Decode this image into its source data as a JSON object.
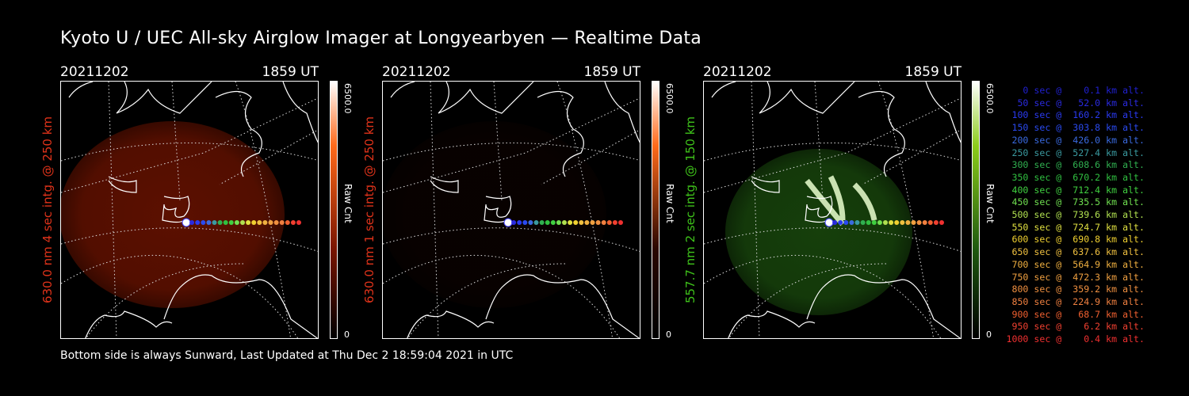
{
  "title": "Kyoto U / UEC All-sky Airglow Imager at Longyearbyen — Realtime Data",
  "panels": [
    {
      "date": "20211202",
      "time": "1859 UT",
      "ylabel": "630.0 nm 4 sec intg. @ 250 km",
      "ylabel_color": "#e0331a",
      "cbar_max": "6500.0",
      "cbar_min": "0",
      "cbar_unit": "Raw Cnt",
      "cbar_top_color": "#ff6a1a",
      "glow_color": "#7a1500",
      "glow_level": 0.75
    },
    {
      "date": "20211202",
      "time": "1859 UT",
      "ylabel": "630.0 nm 1 sec intg. @ 250 km",
      "ylabel_color": "#e0331a",
      "cbar_max": "6500.0",
      "cbar_min": "0",
      "cbar_unit": "Raw Cnt",
      "cbar_top_color": "#ff6a1a",
      "glow_color": "#2a0700",
      "glow_level": 0.2
    },
    {
      "date": "20211202",
      "time": "1859 UT",
      "ylabel": "557.7 nm 2 sec intg. @ 150 km",
      "ylabel_color": "#3ec21a",
      "cbar_max": "6500.0",
      "cbar_min": "0",
      "cbar_unit": "Raw Cnt",
      "cbar_top_color": "#8ccc1a",
      "glow_color": "#1f5a10",
      "glow_level": 0.7
    }
  ],
  "footer": "Bottom side is always Sunward, Last Updated at Thu Dec  2 18:59:04 2021 in UTC",
  "legend": [
    {
      "text": "   0 sec @    0.1 km alt.",
      "color": "#2020d0"
    },
    {
      "text": "  50 sec @   52.0 km alt.",
      "color": "#2a2ae0"
    },
    {
      "text": " 100 sec @  160.2 km alt.",
      "color": "#2a3af0"
    },
    {
      "text": " 150 sec @  303.8 km alt.",
      "color": "#2a4af0"
    },
    {
      "text": " 200 sec @  426.0 km alt.",
      "color": "#3a6ae0"
    },
    {
      "text": " 250 sec @  527.4 km alt.",
      "color": "#3a9aa0"
    },
    {
      "text": " 300 sec @  608.6 km alt.",
      "color": "#30b050"
    },
    {
      "text": " 350 sec @  670.2 km alt.",
      "color": "#30c040"
    },
    {
      "text": " 400 sec @  712.4 km alt.",
      "color": "#40d040"
    },
    {
      "text": " 450 sec @  735.5 km alt.",
      "color": "#70e050"
    },
    {
      "text": " 500 sec @  739.6 km alt.",
      "color": "#b0e050"
    },
    {
      "text": " 550 sec @  724.7 km alt.",
      "color": "#e0e040"
    },
    {
      "text": " 600 sec @  690.8 km alt.",
      "color": "#f0d030"
    },
    {
      "text": " 650 sec @  637.6 km alt.",
      "color": "#f0c040"
    },
    {
      "text": " 700 sec @  564.9 km alt.",
      "color": "#f0b040"
    },
    {
      "text": " 750 sec @  472.3 km alt.",
      "color": "#f0a040"
    },
    {
      "text": " 800 sec @  359.2 km alt.",
      "color": "#f09040"
    },
    {
      "text": " 850 sec @  224.9 km alt.",
      "color": "#f08040"
    },
    {
      "text": " 900 sec @   68.7 km alt.",
      "color": "#f06030"
    },
    {
      "text": " 950 sec @    6.2 km alt.",
      "color": "#f04030"
    },
    {
      "text": "1000 sec @    0.4 km alt.",
      "color": "#f03030"
    }
  ]
}
